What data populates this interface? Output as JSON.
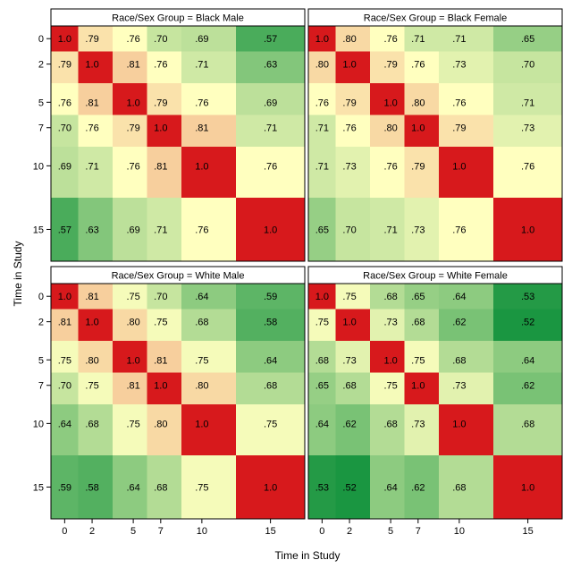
{
  "figure": {
    "ylabel": "Time in Study",
    "xlabel": "Time in Study"
  },
  "color_scale": {
    "low": "#1a9641",
    "mid": "#ffffbf",
    "high": "#d7191c",
    "cell_label_color": "#000000",
    "frame_color": "#000000"
  },
  "chart_data": [
    {
      "type": "heatmap",
      "title": "Race/Sex Group = Black Male",
      "times": [
        0,
        2,
        5,
        7,
        10,
        15
      ],
      "tick_labels": [
        "0",
        "2",
        "5",
        "7",
        "10",
        "15"
      ],
      "matrix": [
        [
          1.0,
          0.79,
          0.76,
          0.7,
          0.69,
          0.57
        ],
        [
          0.79,
          1.0,
          0.81,
          0.76,
          0.71,
          0.63
        ],
        [
          0.76,
          0.81,
          1.0,
          0.79,
          0.76,
          0.69
        ],
        [
          0.7,
          0.76,
          0.79,
          1.0,
          0.81,
          0.71
        ],
        [
          0.69,
          0.71,
          0.76,
          0.81,
          1.0,
          0.76
        ],
        [
          0.57,
          0.63,
          0.69,
          0.71,
          0.76,
          1.0
        ]
      ],
      "labels": [
        [
          "1.0",
          ".79",
          ".76",
          ".70",
          ".69",
          ".57"
        ],
        [
          ".79",
          "1.0",
          ".81",
          ".76",
          ".71",
          ".63"
        ],
        [
          ".76",
          ".81",
          "1.0",
          ".79",
          ".76",
          ".69"
        ],
        [
          ".70",
          ".76",
          ".79",
          "1.0",
          ".81",
          ".71"
        ],
        [
          ".69",
          ".71",
          ".76",
          ".81",
          "1.0",
          ".76"
        ],
        [
          ".57",
          ".63",
          ".69",
          ".71",
          ".76",
          "1.0"
        ]
      ]
    },
    {
      "type": "heatmap",
      "title": "Race/Sex Group = Black Female",
      "times": [
        0,
        2,
        5,
        7,
        10,
        15
      ],
      "tick_labels": [
        "0",
        "2",
        "5",
        "7",
        "10",
        "15"
      ],
      "matrix": [
        [
          1.0,
          0.8,
          0.76,
          0.71,
          0.71,
          0.65
        ],
        [
          0.8,
          1.0,
          0.79,
          0.76,
          0.73,
          0.7
        ],
        [
          0.76,
          0.79,
          1.0,
          0.8,
          0.76,
          0.71
        ],
        [
          0.71,
          0.76,
          0.8,
          1.0,
          0.79,
          0.73
        ],
        [
          0.71,
          0.73,
          0.76,
          0.79,
          1.0,
          0.76
        ],
        [
          0.65,
          0.7,
          0.71,
          0.73,
          0.76,
          1.0
        ]
      ],
      "labels": [
        [
          "1.0",
          ".80",
          ".76",
          ".71",
          ".71",
          ".65"
        ],
        [
          ".80",
          "1.0",
          ".79",
          ".76",
          ".73",
          ".70"
        ],
        [
          ".76",
          ".79",
          "1.0",
          ".80",
          ".76",
          ".71"
        ],
        [
          ".71",
          ".76",
          ".80",
          "1.0",
          ".79",
          ".73"
        ],
        [
          ".71",
          ".73",
          ".76",
          ".79",
          "1.0",
          ".76"
        ],
        [
          ".65",
          ".70",
          ".71",
          ".73",
          ".76",
          "1.0"
        ]
      ]
    },
    {
      "type": "heatmap",
      "title": "Race/Sex Group = White Male",
      "times": [
        0,
        2,
        5,
        7,
        10,
        15
      ],
      "tick_labels": [
        "0",
        "2",
        "5",
        "7",
        "10",
        "15"
      ],
      "matrix": [
        [
          1.0,
          0.81,
          0.75,
          0.7,
          0.64,
          0.59
        ],
        [
          0.81,
          1.0,
          0.8,
          0.75,
          0.68,
          0.58
        ],
        [
          0.75,
          0.8,
          1.0,
          0.81,
          0.75,
          0.64
        ],
        [
          0.7,
          0.75,
          0.81,
          1.0,
          0.8,
          0.68
        ],
        [
          0.64,
          0.68,
          0.75,
          0.8,
          1.0,
          0.75
        ],
        [
          0.59,
          0.58,
          0.64,
          0.68,
          0.75,
          1.0
        ]
      ],
      "labels": [
        [
          "1.0",
          ".81",
          ".75",
          ".70",
          ".64",
          ".59"
        ],
        [
          ".81",
          "1.0",
          ".80",
          ".75",
          ".68",
          ".58"
        ],
        [
          ".75",
          ".80",
          "1.0",
          ".81",
          ".75",
          ".64"
        ],
        [
          ".70",
          ".75",
          ".81",
          "1.0",
          ".80",
          ".68"
        ],
        [
          ".64",
          ".68",
          ".75",
          ".80",
          "1.0",
          ".75"
        ],
        [
          ".59",
          ".58",
          ".64",
          ".68",
          ".75",
          "1.0"
        ]
      ]
    },
    {
      "type": "heatmap",
      "title": "Race/Sex Group = White Female",
      "times": [
        0,
        2,
        5,
        7,
        10,
        15
      ],
      "tick_labels": [
        "0",
        "2",
        "5",
        "7",
        "10",
        "15"
      ],
      "matrix": [
        [
          1.0,
          0.75,
          0.68,
          0.65,
          0.64,
          0.53
        ],
        [
          0.75,
          1.0,
          0.73,
          0.68,
          0.62,
          0.52
        ],
        [
          0.68,
          0.73,
          1.0,
          0.75,
          0.68,
          0.64
        ],
        [
          0.65,
          0.68,
          0.75,
          1.0,
          0.73,
          0.62
        ],
        [
          0.64,
          0.62,
          0.68,
          0.73,
          1.0,
          0.68
        ],
        [
          0.53,
          0.52,
          0.64,
          0.62,
          0.68,
          1.0
        ]
      ],
      "labels": [
        [
          "1.0",
          ".75",
          ".68",
          ".65",
          ".64",
          ".53"
        ],
        [
          ".75",
          "1.0",
          ".73",
          ".68",
          ".62",
          ".52"
        ],
        [
          ".68",
          ".73",
          "1.0",
          ".75",
          ".68",
          ".64"
        ],
        [
          ".65",
          ".68",
          ".75",
          "1.0",
          ".73",
          ".62"
        ],
        [
          ".64",
          ".62",
          ".68",
          ".73",
          "1.0",
          ".68"
        ],
        [
          ".53",
          ".52",
          ".64",
          ".62",
          ".68",
          "1.0"
        ]
      ]
    }
  ]
}
